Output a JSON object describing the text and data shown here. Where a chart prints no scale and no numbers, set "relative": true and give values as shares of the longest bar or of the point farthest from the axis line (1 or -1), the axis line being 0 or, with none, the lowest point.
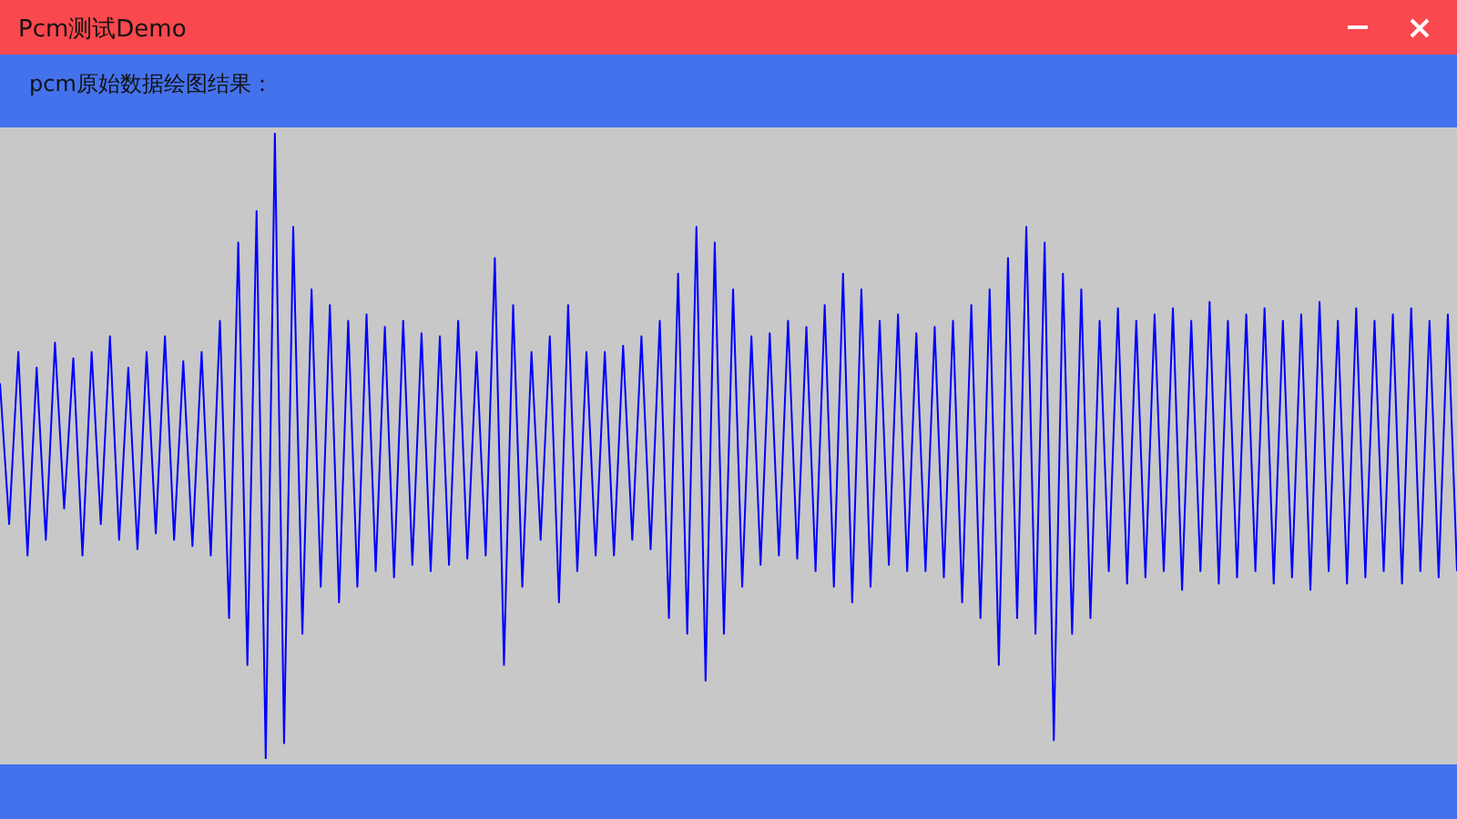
{
  "chart_data": {
    "type": "line",
    "title": "Pcm测试Demo",
    "subtitle": "pcm原始数据绘图结果：",
    "relative": true,
    "marker": "none",
    "categories": [
      null,
      null,
      null,
      null,
      null,
      null,
      null,
      null,
      null,
      null,
      null,
      null,
      null,
      null,
      null,
      null,
      null,
      null,
      null,
      null,
      null,
      null,
      null,
      null,
      null,
      null,
      null,
      null,
      null,
      null,
      null,
      null,
      null,
      null,
      null,
      null,
      null,
      null,
      null,
      null,
      null,
      null,
      null,
      null,
      null,
      null,
      null,
      null,
      null,
      null,
      null,
      null,
      null,
      null,
      null,
      null,
      null,
      null,
      null,
      null,
      null,
      null,
      null,
      null,
      null,
      null,
      null,
      null,
      null,
      null,
      null,
      null,
      null,
      null,
      null,
      null,
      null,
      null,
      null,
      null,
      null,
      null,
      null,
      null,
      null,
      null,
      null,
      null,
      null,
      null,
      null,
      null,
      null,
      null,
      null,
      null,
      null,
      null,
      null,
      null,
      null,
      null,
      null,
      null,
      null,
      null,
      null,
      null,
      null,
      null,
      null,
      null,
      null,
      null,
      null,
      null,
      null,
      null,
      null,
      null,
      null,
      null,
      null,
      null,
      null,
      null,
      null,
      null,
      null,
      null,
      null,
      null,
      null,
      null,
      null,
      null,
      null,
      null,
      null,
      null,
      null,
      null,
      null,
      null,
      null,
      null,
      null,
      null,
      null,
      null,
      null,
      null,
      null,
      null,
      null,
      null,
      null,
      null,
      null,
      null
    ],
    "series": [
      {
        "color": "#0000ff",
        "values": [
          0.6,
          0.375,
          0.65,
          0.325,
          0.625,
          0.35,
          0.665,
          0.4,
          0.64,
          0.325,
          0.65,
          0.375,
          0.675,
          0.35,
          0.625,
          0.335,
          0.65,
          0.36,
          0.675,
          0.35,
          0.635,
          0.34,
          0.65,
          0.325,
          0.7,
          0.225,
          0.825,
          0.15,
          0.875,
          0,
          1,
          0.025,
          0.85,
          0.2,
          0.75,
          0.275,
          0.725,
          0.25,
          0.7,
          0.275,
          0.71,
          0.3,
          0.69,
          0.29,
          0.7,
          0.31,
          0.68,
          0.3,
          0.675,
          0.31,
          0.7,
          0.32,
          0.65,
          0.325,
          0.8,
          0.15,
          0.725,
          0.275,
          0.65,
          0.35,
          0.675,
          0.25,
          0.725,
          0.3,
          0.65,
          0.325,
          0.65,
          0.325,
          0.66,
          0.35,
          0.675,
          0.335,
          0.7,
          0.225,
          0.775,
          0.2,
          0.85,
          0.125,
          0.825,
          0.2,
          0.75,
          0.275,
          0.675,
          0.31,
          0.68,
          0.325,
          0.7,
          0.32,
          0.69,
          0.3,
          0.725,
          0.275,
          0.775,
          0.25,
          0.75,
          0.275,
          0.7,
          0.31,
          0.71,
          0.3,
          0.68,
          0.3,
          0.69,
          0.29,
          0.7,
          0.25,
          0.725,
          0.225,
          0.75,
          0.15,
          0.8,
          0.225,
          0.85,
          0.2,
          0.825,
          0.03,
          0.775,
          0.2,
          0.75,
          0.225,
          0.7,
          0.3,
          0.72,
          0.28,
          0.7,
          0.29,
          0.71,
          0.3,
          0.72,
          0.27,
          0.7,
          0.3,
          0.73,
          0.28,
          0.7,
          0.29,
          0.71,
          0.3,
          0.72,
          0.28,
          0.7,
          0.29,
          0.71,
          0.27,
          0.73,
          0.3,
          0.7,
          0.28,
          0.72,
          0.29,
          0.7,
          0.3,
          0.71,
          0.28,
          0.72,
          0.3,
          0.7,
          0.29,
          0.71,
          0.3
        ]
      }
    ]
  }
}
